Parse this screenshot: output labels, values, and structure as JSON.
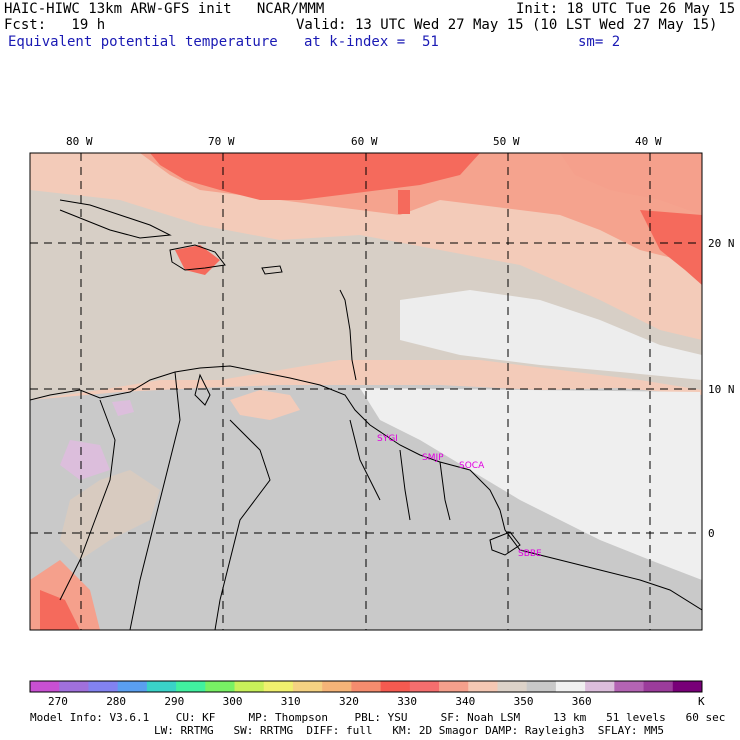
{
  "header": {
    "line1_left": "HAIC-HIWC 13km ARW-GFS init   NCAR/MMM",
    "line1_right": "Init: 18 UTC Tue 26 May 15",
    "line2_left": "Fcst:   19 h",
    "line2_right": "Valid: 13 UTC Wed 27 May 15 (10 LST Wed 27 May 15)",
    "line3_left": "Equivalent potential temperature",
    "line3_mid": "at k-index =  51",
    "line3_right": "sm= 2"
  },
  "axes": {
    "lon_labels": [
      "80 W",
      "70 W",
      "60 W",
      "50 W",
      "40 W"
    ],
    "lat_labels": [
      "20 N",
      "10 N",
      "0"
    ]
  },
  "stations": [
    "SYGI",
    "SMJP",
    "SOCA",
    "SBBE"
  ],
  "colorbar": {
    "labels": [
      "270",
      "280",
      "290",
      "300",
      "310",
      "320",
      "330",
      "340",
      "350",
      "360",
      "K"
    ],
    "colors": [
      "#c850d2",
      "#a070dc",
      "#8282f0",
      "#5a9ff0",
      "#3ad2c8",
      "#41f0a0",
      "#78f064",
      "#c8f05a",
      "#f0f06e",
      "#f5d282",
      "#f5b478",
      "#f58c6e",
      "#f55a50",
      "#f56e6e",
      "#f5a08c",
      "#f5c8b4",
      "#dcd2c8",
      "#c8c8c8",
      "#f0f0f0",
      "#dcbedc",
      "#b464b4",
      "#9b3c9b",
      "#780078"
    ]
  },
  "footer": {
    "line1": "Model Info: V3.6.1    CU: KF     MP: Thompson    PBL: YSU     SF: Noah LSM     13 km   51 levels   60 sec",
    "line2": "LW: RRTMG   SW: RRTMG  DIFF: full   KM: 2D Smagor DAMP: Rayleigh3  SFLAY: MM5"
  }
}
